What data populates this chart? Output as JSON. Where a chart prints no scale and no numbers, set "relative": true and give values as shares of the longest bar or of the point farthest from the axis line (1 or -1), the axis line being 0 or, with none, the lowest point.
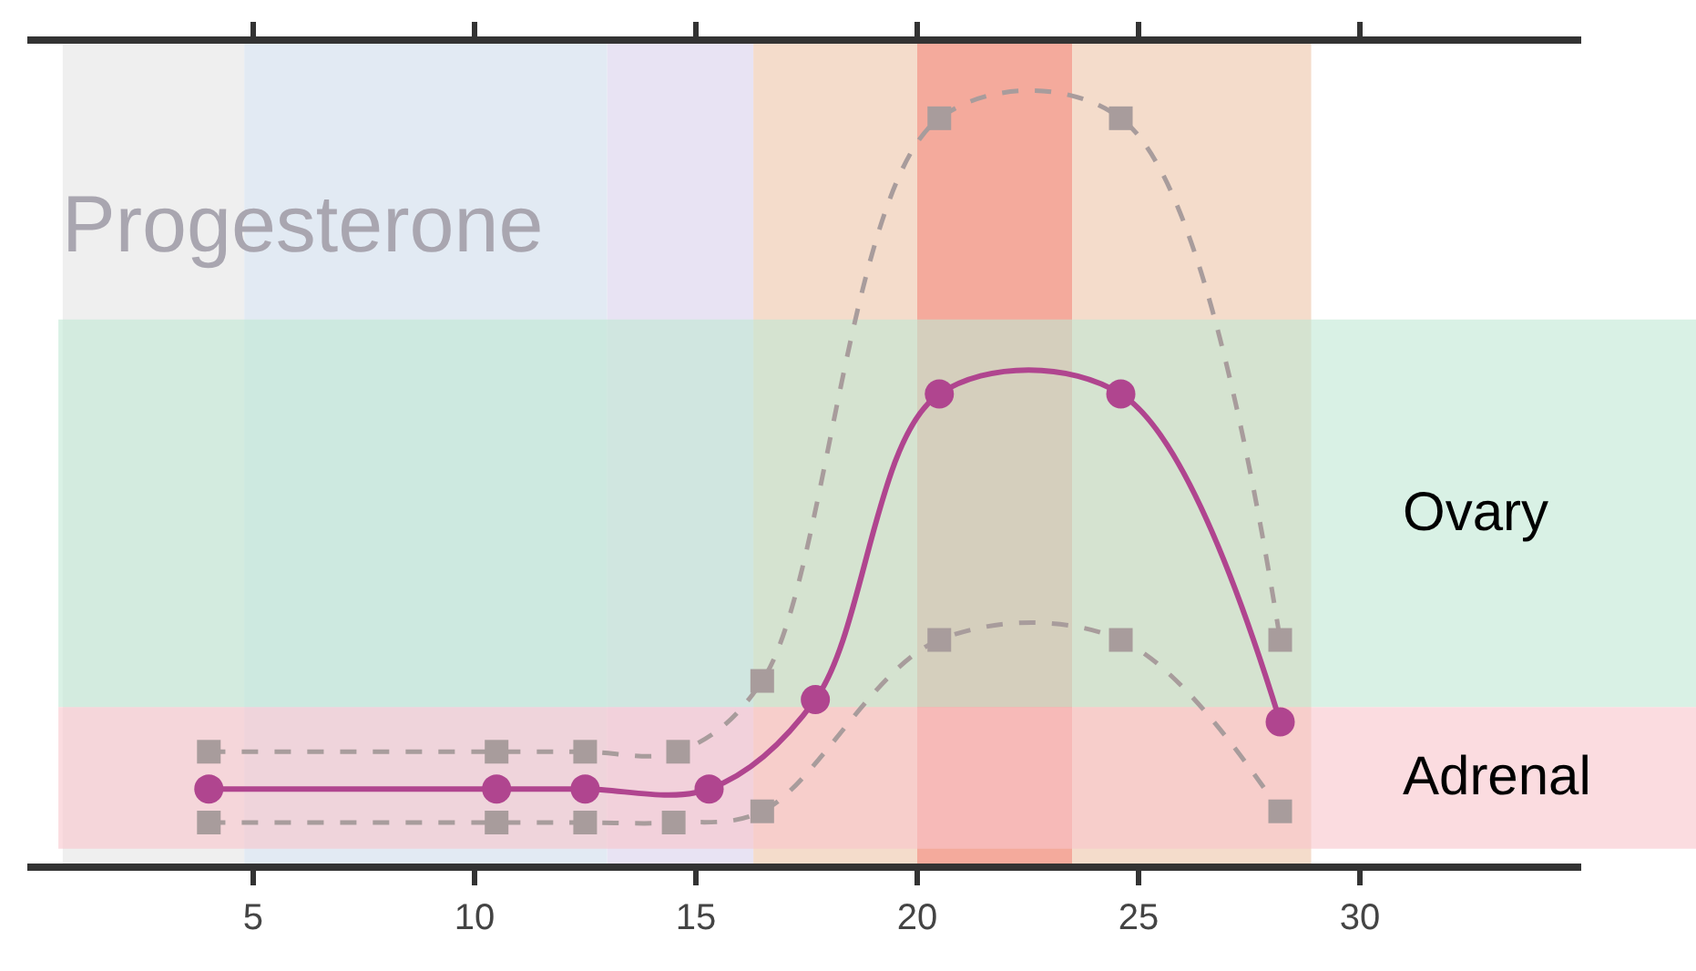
{
  "chart_data": {
    "type": "line",
    "title": "Progesterone",
    "relative": true,
    "tick_labels": "x",
    "xlim": [
      -0.1,
      35
    ],
    "xticks": [
      5,
      10,
      15,
      20,
      25,
      30
    ],
    "grid": false,
    "series": [
      {
        "color": "#a89c9c",
        "marker": "square",
        "line_style": "dashed",
        "x": [
          4,
          10.5,
          12.5,
          14.6,
          16.5,
          20.5,
          24.6,
          28.2
        ],
        "values": [
          0.15,
          0.15,
          0.15,
          0.15,
          0.245,
          1.0,
          1.0,
          0.3
        ]
      },
      {
        "color": "#a89c9c",
        "marker": "square",
        "line_style": "dashed",
        "x": [
          4,
          10.5,
          12.5,
          14.5,
          16.5,
          20.5,
          24.6,
          28.2
        ],
        "values": [
          0.055,
          0.055,
          0.055,
          0.055,
          0.07,
          0.3,
          0.3,
          0.07
        ]
      },
      {
        "color": "#b0458f",
        "marker": "circle",
        "line_style": "solid",
        "x": [
          4,
          10.5,
          12.5,
          15.3,
          17.7,
          20.5,
          24.6,
          28.2
        ],
        "values": [
          0.1,
          0.1,
          0.1,
          0.1,
          0.22,
          0.63,
          0.63,
          0.19
        ]
      }
    ],
    "bands": [
      {
        "axis": "x",
        "from": 0.7,
        "to": 4.8,
        "color": "#efefef"
      },
      {
        "axis": "x",
        "from": 4.8,
        "to": 13.0,
        "color": "#e2eaf3"
      },
      {
        "axis": "x",
        "from": 13.0,
        "to": 16.3,
        "color": "#e8e3f3"
      },
      {
        "axis": "x",
        "from": 16.3,
        "to": 20.0,
        "color": "#f4dccb"
      },
      {
        "axis": "x",
        "from": 20.0,
        "to": 23.5,
        "color": "#f4aa9c"
      },
      {
        "axis": "x",
        "from": 23.5,
        "to": 28.9,
        "color": "#f4dccb"
      },
      {
        "axis": "y",
        "from": 0.21,
        "to": 0.73,
        "color": "#bfe8d3",
        "label": "Ovary"
      },
      {
        "axis": "y",
        "from": 0.02,
        "to": 0.21,
        "color": "#f9c4cc",
        "label": "Adrenal"
      }
    ]
  }
}
